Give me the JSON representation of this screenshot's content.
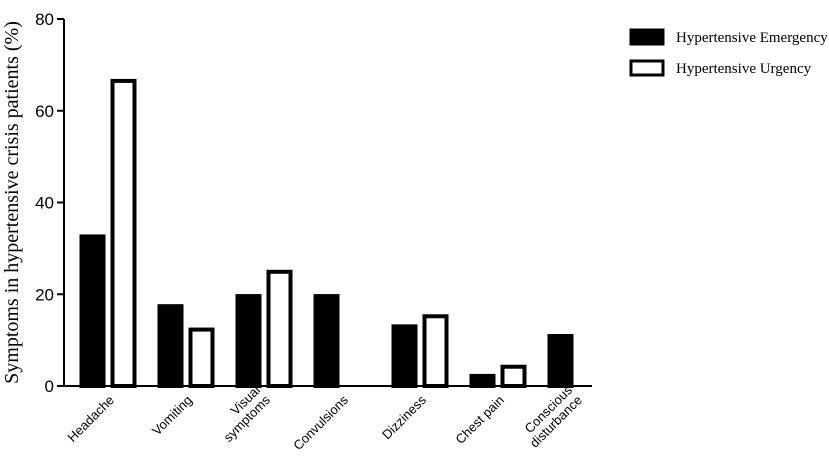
{
  "chart_data": {
    "type": "bar",
    "title": "",
    "xlabel": "",
    "ylabel": "Symptoms in hypertensive crisis patients (%)",
    "ylim": [
      0,
      80
    ],
    "yticks": [
      0,
      20,
      40,
      60,
      80
    ],
    "categories": [
      "Headache",
      "Vomiting",
      "Visual symptoms",
      "Convulsions",
      "Dizziness",
      "Chest pain",
      "Conscious disturbance"
    ],
    "category_lines": [
      [
        "Headache"
      ],
      [
        "Vomiting"
      ],
      [
        "Visual",
        "symptoms"
      ],
      [
        "Convulsions"
      ],
      [
        "Dizziness"
      ],
      [
        "Chest pain"
      ],
      [
        "Conscious",
        "disturbance"
      ]
    ],
    "series": [
      {
        "name": "Hypertensive Emergency",
        "fill": "#000000",
        "values": [
          32.6,
          17.4,
          19.6,
          19.6,
          13.0,
          2.2,
          10.9
        ]
      },
      {
        "name": "Hypertensive Urgency",
        "fill": "#ffffff",
        "values": [
          66.5,
          12.3,
          24.9,
          0,
          15.2,
          4.2,
          0
        ]
      }
    ],
    "legend_position": "top-right",
    "grid": false
  }
}
